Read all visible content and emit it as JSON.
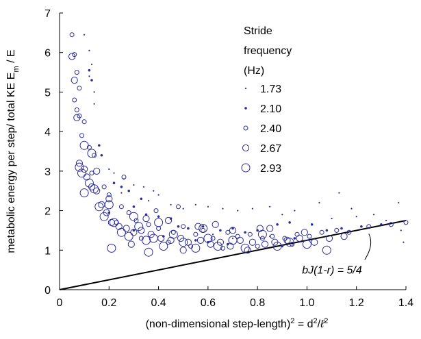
{
  "chart_data": {
    "type": "scatter",
    "xlabel_parts": [
      "(non-dimensional step-length)",
      "2",
      " = d",
      "2",
      "/",
      "ℓ",
      "2"
    ],
    "ylabel_parts": [
      "metabolic energy per step/ total KE E",
      "m",
      " / E"
    ],
    "xlim": [
      0,
      1.4
    ],
    "ylim": [
      0,
      7
    ],
    "xticks": [
      0,
      0.2,
      0.4,
      0.6,
      0.8,
      1.0,
      1.2,
      1.4
    ],
    "xtick_labels": [
      "0",
      "0.2",
      "0.4",
      "0.6",
      "0.8",
      "1.0",
      "1.2",
      "1.4"
    ],
    "yticks": [
      0,
      1,
      2,
      3,
      4,
      5,
      6,
      7
    ],
    "ytick_labels": [
      "0",
      "1",
      "2",
      "3",
      "4",
      "5",
      "6",
      "7"
    ],
    "grid": false,
    "legend_position": "top-right",
    "legend_title_lines": [
      "Stride",
      "frequency",
      "(Hz)"
    ],
    "marker_color": "#2b2b9a",
    "line_color": "#000000",
    "line": {
      "x": [
        0,
        1.4
      ],
      "y": [
        0,
        1.75
      ]
    },
    "annotation": {
      "text": "bJ(1-r) = 5/4",
      "x": 1.25,
      "y": 1.45
    },
    "series": [
      {
        "name": "1.73",
        "points": [
          [
            0.1,
            6.45
          ],
          [
            0.12,
            6.05
          ],
          [
            0.13,
            5.7
          ],
          [
            0.12,
            5.4
          ],
          [
            0.14,
            5.0
          ],
          [
            0.14,
            4.7
          ],
          [
            0.2,
            3.05
          ],
          [
            0.22,
            2.95
          ],
          [
            0.26,
            2.8
          ],
          [
            0.3,
            2.65
          ],
          [
            0.34,
            2.6
          ],
          [
            0.38,
            2.5
          ],
          [
            0.4,
            2.4
          ],
          [
            0.36,
            2.25
          ],
          [
            0.45,
            2.15
          ],
          [
            0.5,
            2.05
          ],
          [
            0.55,
            2.15
          ],
          [
            0.6,
            2.1
          ],
          [
            0.66,
            2.05
          ],
          [
            0.72,
            2.0
          ],
          [
            0.78,
            2.05
          ],
          [
            0.85,
            2.1
          ],
          [
            0.9,
            1.9
          ],
          [
            0.95,
            2.0
          ],
          [
            1.05,
            2.2
          ],
          [
            1.1,
            1.8
          ],
          [
            1.13,
            2.45
          ],
          [
            1.18,
            2.05
          ],
          [
            1.2,
            1.85
          ],
          [
            1.27,
            1.9
          ],
          [
            1.32,
            1.75
          ],
          [
            1.37,
            2.2
          ],
          [
            1.38,
            1.5
          ],
          [
            1.39,
            1.2
          ],
          [
            0.7,
            1.3
          ],
          [
            0.85,
            1.35
          ],
          [
            0.62,
            1.4
          ],
          [
            0.25,
            2.45
          ]
        ]
      },
      {
        "name": "2.10",
        "points": [
          [
            0.12,
            5.55
          ],
          [
            0.13,
            5.3
          ],
          [
            0.16,
            3.65
          ],
          [
            0.17,
            3.4
          ],
          [
            0.22,
            2.7
          ],
          [
            0.25,
            2.6
          ],
          [
            0.28,
            2.5
          ],
          [
            0.33,
            2.3
          ],
          [
            0.3,
            2.1
          ],
          [
            0.35,
            1.9
          ],
          [
            0.4,
            1.85
          ],
          [
            0.45,
            1.8
          ],
          [
            0.48,
            1.6
          ],
          [
            0.52,
            1.55
          ],
          [
            0.58,
            1.6
          ],
          [
            0.65,
            1.5
          ],
          [
            0.7,
            1.55
          ],
          [
            0.75,
            1.45
          ],
          [
            0.8,
            1.5
          ],
          [
            0.88,
            1.65
          ],
          [
            0.93,
            1.7
          ],
          [
            1.02,
            1.65
          ],
          [
            1.08,
            1.5
          ],
          [
            1.14,
            1.55
          ],
          [
            1.22,
            1.6
          ],
          [
            1.3,
            1.65
          ],
          [
            0.55,
            1.25
          ],
          [
            0.6,
            1.2
          ],
          [
            0.68,
            1.15
          ],
          [
            0.95,
            1.3
          ],
          [
            0.42,
            1.35
          ],
          [
            0.3,
            1.5
          ],
          [
            0.2,
            1.95
          ],
          [
            0.9,
            1.1
          ]
        ]
      },
      {
        "name": "2.40",
        "points": [
          [
            0.05,
            6.45
          ],
          [
            0.06,
            5.95
          ],
          [
            0.07,
            5.5
          ],
          [
            0.08,
            5.1
          ],
          [
            0.06,
            4.8
          ],
          [
            0.07,
            4.55
          ],
          [
            0.08,
            4.4
          ],
          [
            0.1,
            4.25
          ],
          [
            0.09,
            3.9
          ],
          [
            0.12,
            3.6
          ],
          [
            0.14,
            3.4
          ],
          [
            0.13,
            2.95
          ],
          [
            0.18,
            2.6
          ],
          [
            0.2,
            2.4
          ],
          [
            0.25,
            2.1
          ],
          [
            0.28,
            1.95
          ],
          [
            0.31,
            1.75
          ],
          [
            0.36,
            1.65
          ],
          [
            0.4,
            1.55
          ],
          [
            0.46,
            1.45
          ],
          [
            0.5,
            1.6
          ],
          [
            0.55,
            1.4
          ],
          [
            0.58,
            1.5
          ],
          [
            0.62,
            1.3
          ],
          [
            0.68,
            1.45
          ],
          [
            0.72,
            1.35
          ],
          [
            0.77,
            1.4
          ],
          [
            0.82,
            1.3
          ],
          [
            0.86,
            1.35
          ],
          [
            0.91,
            1.3
          ],
          [
            0.96,
            1.4
          ],
          [
            1.01,
            1.35
          ],
          [
            1.06,
            1.45
          ],
          [
            1.12,
            1.5
          ],
          [
            1.17,
            1.45
          ],
          [
            1.25,
            1.6
          ],
          [
            1.34,
            1.65
          ],
          [
            1.4,
            1.7
          ],
          [
            0.23,
            1.7
          ],
          [
            0.33,
            1.3
          ],
          [
            0.44,
            1.2
          ],
          [
            0.53,
            1.1
          ],
          [
            0.66,
            1.05
          ],
          [
            0.8,
            1.1
          ],
          [
            0.94,
            1.15
          ],
          [
            0.39,
            2.0
          ],
          [
            0.48,
            2.1
          ],
          [
            0.26,
            2.85
          ]
        ]
      },
      {
        "name": "2.67",
        "points": [
          [
            0.05,
            5.9
          ],
          [
            0.06,
            5.3
          ],
          [
            0.07,
            4.35
          ],
          [
            0.08,
            3.2
          ],
          [
            0.1,
            3.05
          ],
          [
            0.11,
            2.85
          ],
          [
            0.13,
            2.6
          ],
          [
            0.15,
            2.5
          ],
          [
            0.17,
            2.15
          ],
          [
            0.19,
            1.95
          ],
          [
            0.21,
            1.7
          ],
          [
            0.24,
            1.6
          ],
          [
            0.27,
            1.55
          ],
          [
            0.3,
            1.45
          ],
          [
            0.33,
            1.5
          ],
          [
            0.37,
            1.4
          ],
          [
            0.41,
            1.3
          ],
          [
            0.45,
            1.25
          ],
          [
            0.49,
            1.3
          ],
          [
            0.52,
            1.2
          ],
          [
            0.57,
            1.25
          ],
          [
            0.61,
            1.15
          ],
          [
            0.65,
            1.2
          ],
          [
            0.69,
            1.1
          ],
          [
            0.73,
            1.25
          ],
          [
            0.78,
            1.2
          ],
          [
            0.83,
            1.15
          ],
          [
            0.87,
            1.2
          ],
          [
            0.92,
            1.25
          ],
          [
            0.97,
            1.3
          ],
          [
            1.03,
            1.2
          ],
          [
            1.09,
            1.3
          ],
          [
            1.15,
            1.35
          ],
          [
            0.15,
            3.0
          ],
          [
            0.2,
            2.3
          ],
          [
            0.35,
            1.8
          ],
          [
            0.44,
            1.75
          ],
          [
            0.56,
            1.6
          ],
          [
            0.7,
            1.5
          ],
          [
            0.81,
            1.55
          ],
          [
            0.99,
            1.45
          ],
          [
            0.29,
            1.15
          ],
          [
            0.5,
            1.0
          ],
          [
            0.76,
            1.0
          ],
          [
            0.63,
            1.65
          ],
          [
            0.85,
            1.55
          ]
        ]
      },
      {
        "name": "2.93",
        "points": [
          [
            0.08,
            3.1
          ],
          [
            0.09,
            2.95
          ],
          [
            0.1,
            2.45
          ],
          [
            0.12,
            2.7
          ],
          [
            0.14,
            2.55
          ],
          [
            0.16,
            2.1
          ],
          [
            0.18,
            1.85
          ],
          [
            0.22,
            1.7
          ],
          [
            0.25,
            1.45
          ],
          [
            0.28,
            1.35
          ],
          [
            0.32,
            1.6
          ],
          [
            0.35,
            1.25
          ],
          [
            0.38,
            1.3
          ],
          [
            0.42,
            1.1
          ],
          [
            0.46,
            1.4
          ],
          [
            0.5,
            1.2
          ],
          [
            0.55,
            1.05
          ],
          [
            0.6,
            1.3
          ],
          [
            0.64,
            1.1
          ],
          [
            0.7,
            1.25
          ],
          [
            0.75,
            1.05
          ],
          [
            0.82,
            1.4
          ],
          [
            0.88,
            1.1
          ],
          [
            0.93,
            1.2
          ],
          [
            1.0,
            1.15
          ],
          [
            1.08,
            1.0
          ],
          [
            0.1,
            3.65
          ],
          [
            0.13,
            3.45
          ],
          [
            0.2,
            2.15
          ],
          [
            0.3,
            1.85
          ],
          [
            0.4,
            1.7
          ],
          [
            0.58,
            1.55
          ],
          [
            0.21,
            1.05
          ],
          [
            0.36,
            0.95
          ]
        ]
      }
    ]
  }
}
